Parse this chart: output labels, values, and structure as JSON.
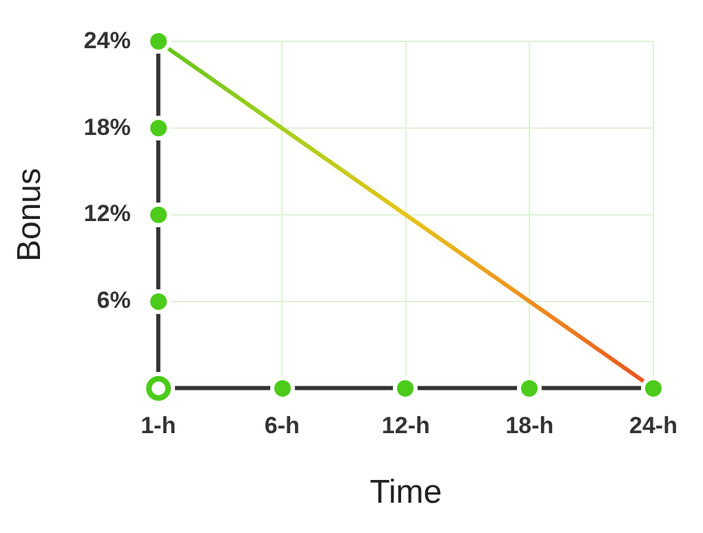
{
  "chart_data": {
    "type": "line",
    "xlabel": "Time",
    "ylabel": "Bonus",
    "categories": [
      "1-h",
      "6-h",
      "12-h",
      "18-h",
      "24-h"
    ],
    "series": [
      {
        "values": [
          24,
          18,
          12,
          6,
          0
        ],
        "colors": [
          "#5ec41c",
          "#a6d01e",
          "#e6c41a",
          "#ee9020",
          "#e8501e"
        ]
      }
    ],
    "ylim": [
      0,
      24
    ],
    "yticks": [
      {
        "value": 0,
        "label": null
      },
      {
        "value": 6,
        "label": "6%"
      },
      {
        "value": 12,
        "label": "12%"
      },
      {
        "value": 18,
        "label": "18%"
      },
      {
        "value": 24,
        "label": "24%"
      }
    ],
    "grid": true,
    "legend": false,
    "marker": "none",
    "line_style": "solid"
  }
}
